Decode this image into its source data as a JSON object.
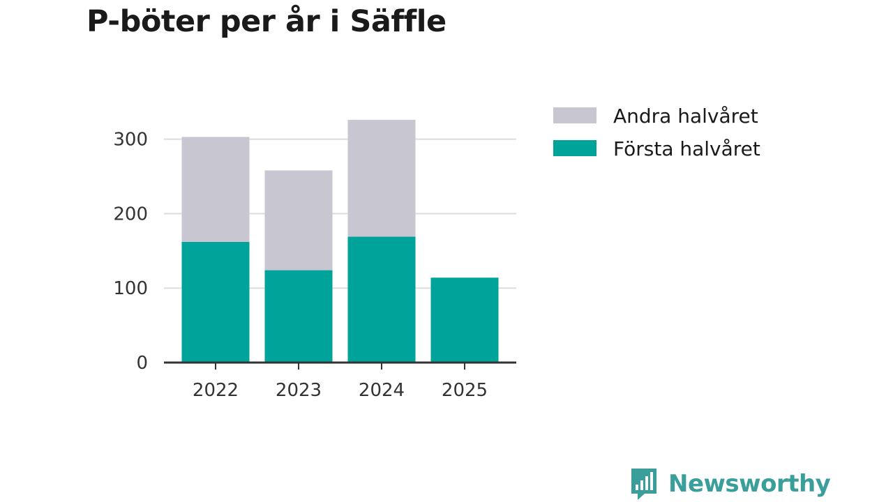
{
  "chart_data": {
    "type": "bar",
    "stacked": true,
    "title": "P-böter per år i Säffle",
    "categories": [
      "2022",
      "2023",
      "2024",
      "2025"
    ],
    "series": [
      {
        "name": "Första halvåret",
        "color": "#00a39a",
        "values": [
          162,
          124,
          169,
          114
        ]
      },
      {
        "name": "Andra halvåret",
        "color": "#c7c6d1",
        "values": [
          141,
          134,
          157,
          0
        ]
      }
    ],
    "legend_order": [
      "Andra halvåret",
      "Första halvåret"
    ],
    "yticks": [
      "0",
      "100",
      "200",
      "300"
    ],
    "ylim": [
      0,
      300
    ],
    "xlabel": "",
    "ylabel": "",
    "grid": true,
    "legend_position": "right"
  },
  "brand": {
    "name": "Newsworthy",
    "icon": "newsworthy-logo-icon"
  }
}
